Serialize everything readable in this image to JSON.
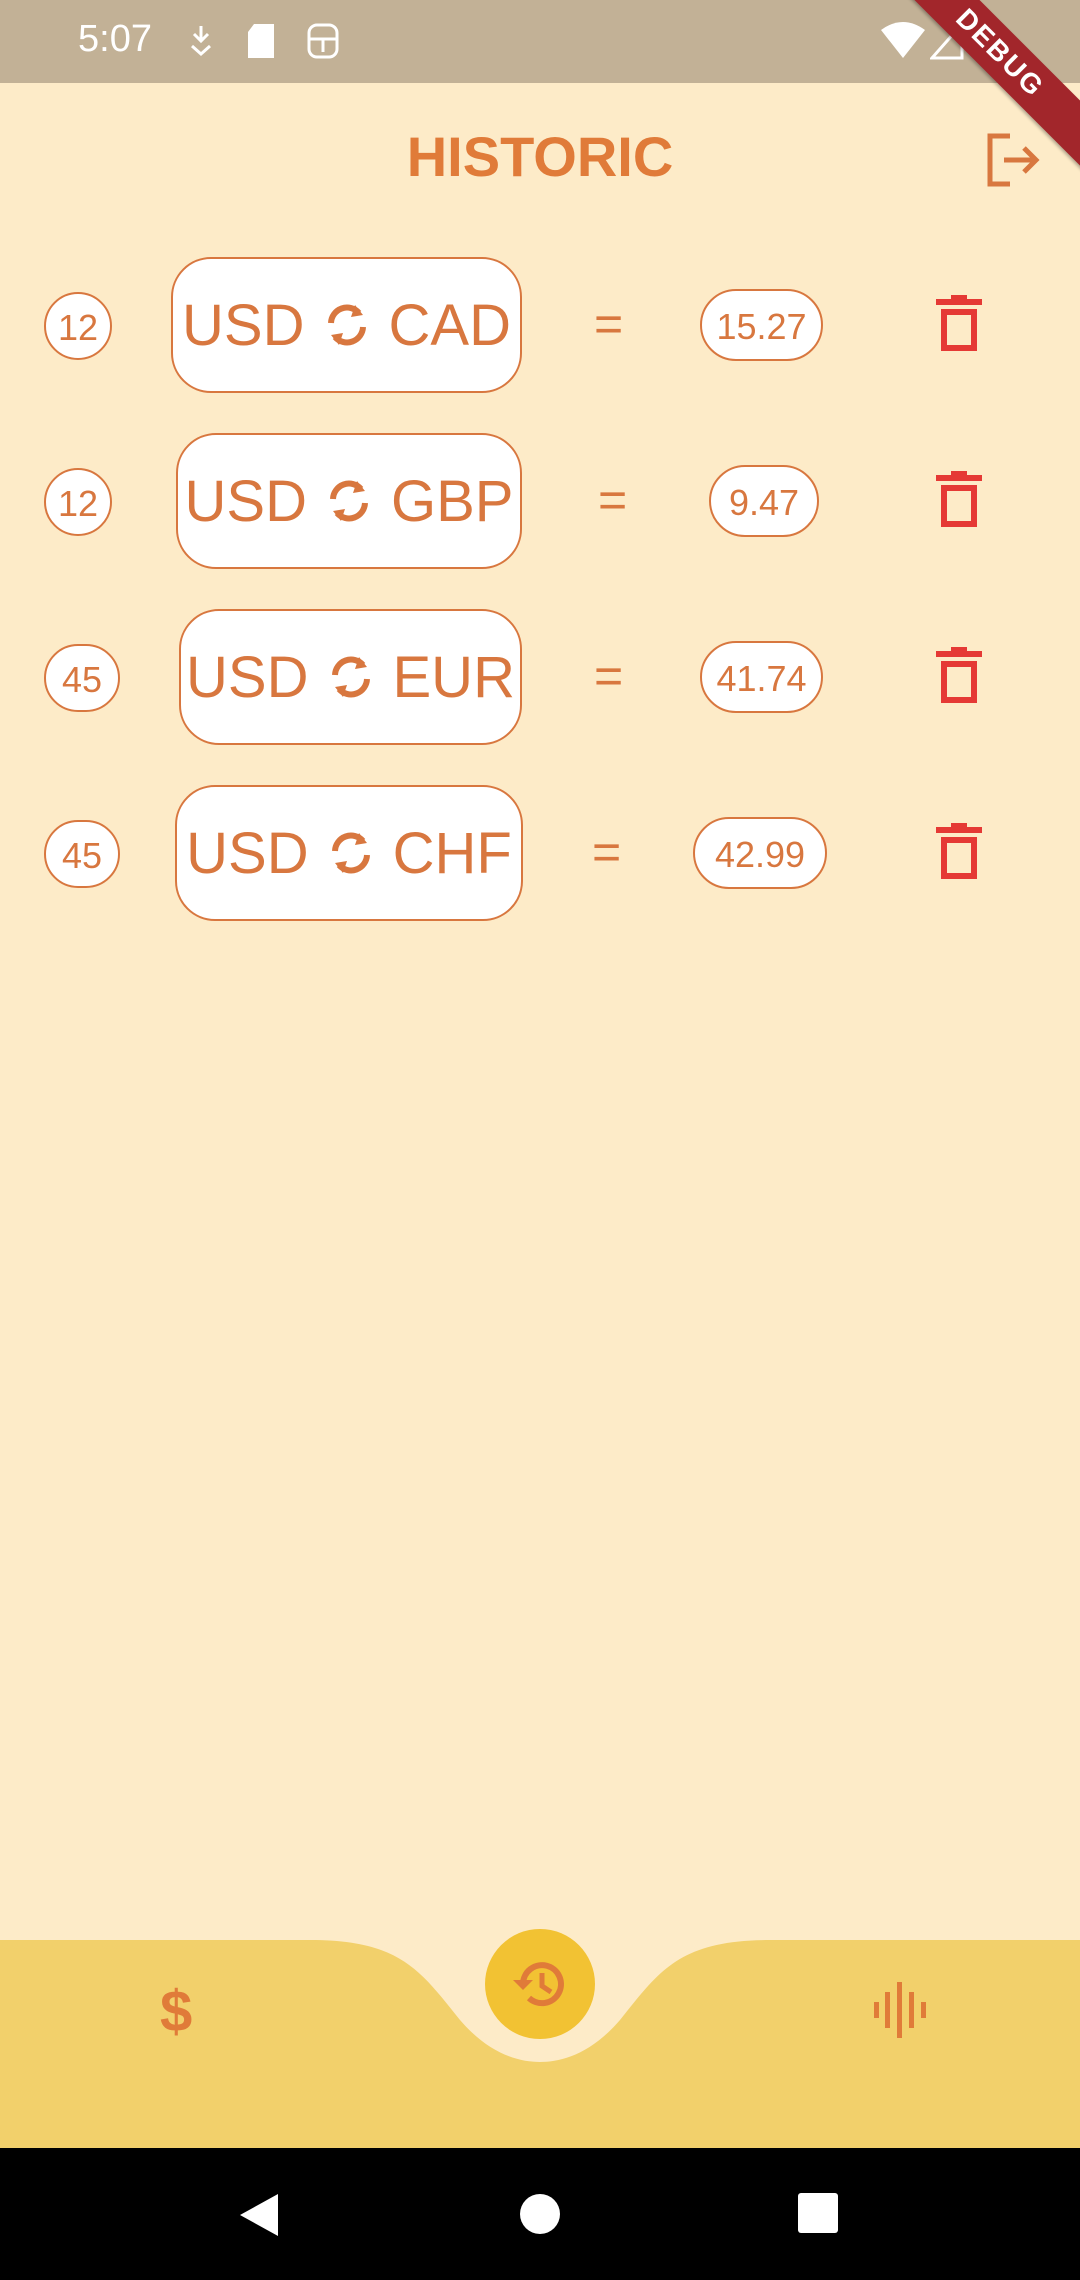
{
  "status_bar": {
    "time": "5:07",
    "debug_label": "DEBUG"
  },
  "header": {
    "title": "HISTORIC"
  },
  "rows": [
    {
      "amount": "12",
      "from": "USD",
      "to": "CAD",
      "equals": "=",
      "result": "15.27"
    },
    {
      "amount": "12",
      "from": "USD",
      "to": "GBP",
      "equals": "=",
      "result": "9.47"
    },
    {
      "amount": "45",
      "from": "USD",
      "to": "EUR",
      "equals": "=",
      "result": "41.74"
    },
    {
      "amount": "45",
      "from": "USD",
      "to": "CHF",
      "equals": "=",
      "result": "42.99"
    }
  ],
  "bottom_nav": {
    "left_symbol": "$",
    "center_icon": "history-icon",
    "right_icon": "sound-wave-icon"
  },
  "colors": {
    "accent": "#D8773F",
    "background": "#FDEBC8",
    "nav": "#F2D06B",
    "fab": "#F2C233",
    "delete": "#E53935"
  }
}
